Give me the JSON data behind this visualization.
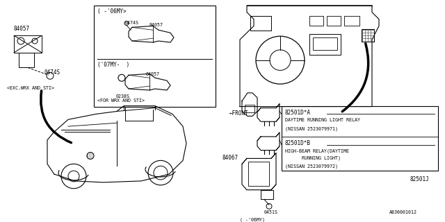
{
  "bg_color": "#ffffff",
  "line_color": "#000000",
  "labels": {
    "part_84057_left": "84057",
    "part_0474S_left": "0474S",
    "exc_label": "<EXC.WRX AND STI>",
    "box_06my_top": "( -'06MY>",
    "box_07my": "('07MY-  )",
    "box_0474S": "0474S",
    "box_84057_top": "84057",
    "box_84057_bot": "84057",
    "box_0238S": "0238S",
    "for_wrx": "<FOR WRX AND STI>",
    "front_label": "←FRONT",
    "part_82501DA": "82501D*A",
    "daytime_relay": "DAYTIME RUNNING LIGHT RELAY",
    "nissan_1": "(NISSAN 2523079971)",
    "part_82501DB": "82501D*B",
    "highbeam_relay_1": "HIGH-BEAM RELAY(DAYTIME",
    "highbeam_relay_2": "      RUNNING LIGHT)",
    "nissan_2": "(NISSAN 2523079972)",
    "part_82501J": "82501J",
    "part_84067": "84067",
    "part_0451S": "0451S",
    "label_06my_bot": "( -'06MY)",
    "diagram_code": "A836001012"
  },
  "font_size_small": 5.5,
  "font_size_tiny": 4.8
}
